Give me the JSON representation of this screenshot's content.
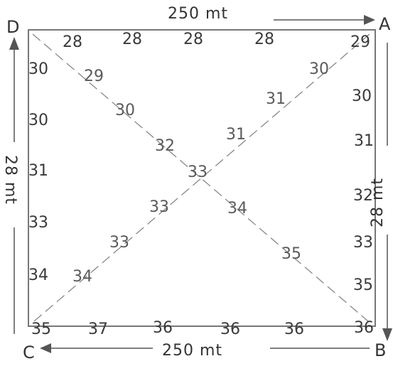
{
  "corners": {
    "top_left": "D",
    "top_right": "A",
    "bottom_right": "B",
    "bottom_left": "C"
  },
  "dimensions": {
    "top": "250 mt",
    "bottom": "250 mt",
    "left": "28 mt",
    "right": "28 mt"
  },
  "top_edge_values": [
    "28",
    "28",
    "28",
    "28",
    "29"
  ],
  "bottom_edge_values": [
    "35",
    "37",
    "36",
    "36",
    "36",
    "36"
  ],
  "left_edge_values": [
    "30",
    "30",
    "31",
    "33",
    "34"
  ],
  "right_edge_values": [
    "30",
    "31",
    "32",
    "33",
    "35"
  ],
  "diagonal_db_values": [
    "29",
    "30",
    "32",
    "33",
    "34",
    "35"
  ],
  "diagonal_ca_values": [
    "34",
    "33",
    "33",
    "31",
    "31",
    "30"
  ],
  "colors": {
    "ink": "#3a3a3a",
    "pencil": "#777777",
    "paper": "#ffffff"
  }
}
